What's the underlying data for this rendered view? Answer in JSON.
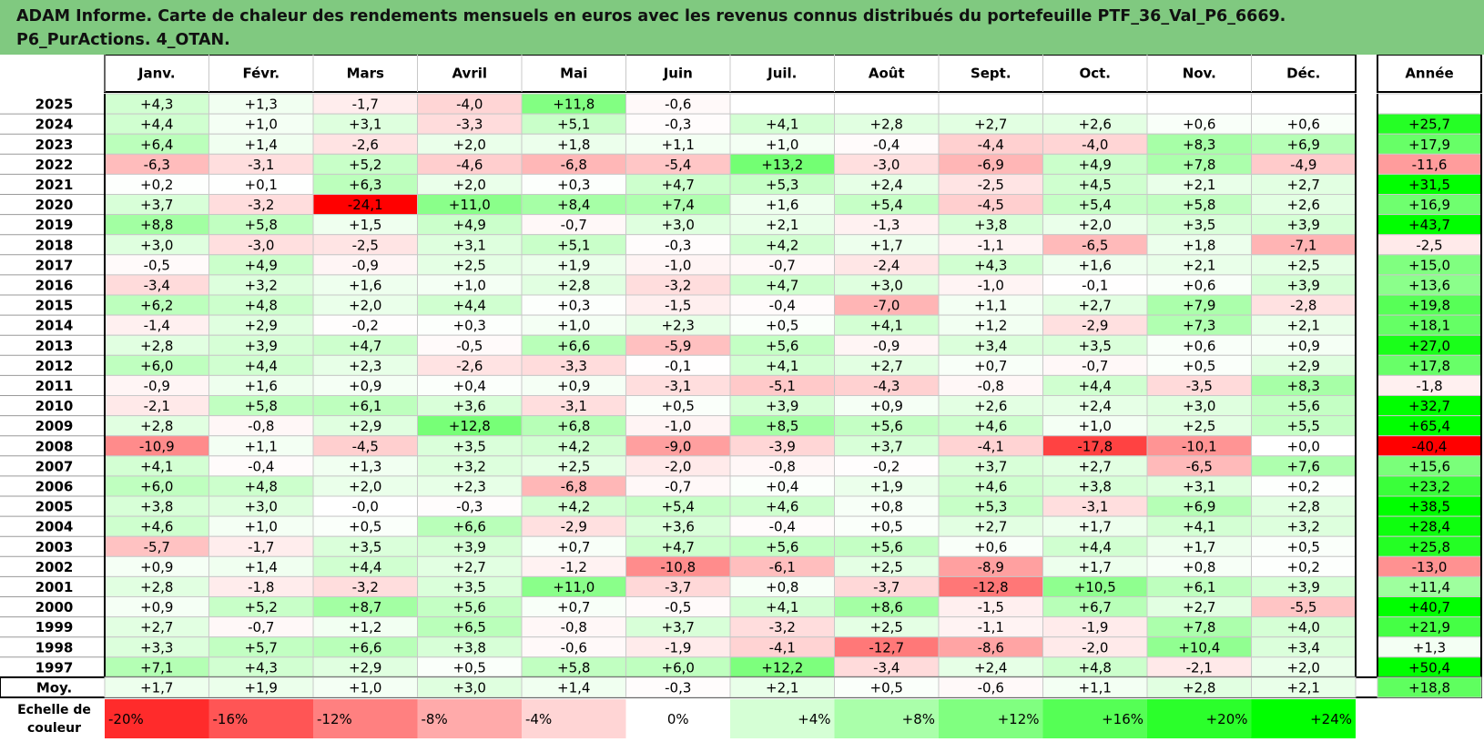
{
  "title": {
    "line1": "ADAM Informe. Carte de chaleur des rendements mensuels en euros avec les revenus connus distribués du portefeuille PTF_36_Val_P6_6669.",
    "line2": "P6_PurActions. 4_OTAN."
  },
  "chart_data": {
    "type": "heatmap",
    "columns": [
      "Janv.",
      "Févr.",
      "Mars",
      "Avril",
      "Mai",
      "Juin",
      "Juil.",
      "Août",
      "Sept.",
      "Oct.",
      "Nov.",
      "Déc."
    ],
    "year_column": "Année",
    "rows": [
      {
        "year": "2025",
        "months": [
          4.3,
          1.3,
          -1.7,
          -4.0,
          11.8,
          -0.6,
          null,
          null,
          null,
          null,
          null,
          null
        ],
        "annual": null
      },
      {
        "year": "2024",
        "months": [
          4.4,
          1.0,
          3.1,
          -3.3,
          5.1,
          -0.3,
          4.1,
          2.8,
          2.7,
          2.6,
          0.6,
          0.6
        ],
        "annual": 25.7
      },
      {
        "year": "2023",
        "months": [
          6.4,
          1.4,
          -2.6,
          2.0,
          1.8,
          1.1,
          1.0,
          -0.4,
          -4.4,
          -4.0,
          8.3,
          6.9
        ],
        "annual": 17.9
      },
      {
        "year": "2022",
        "months": [
          -6.3,
          -3.1,
          5.2,
          -4.6,
          -6.8,
          -5.4,
          13.2,
          -3.0,
          -6.9,
          4.9,
          7.8,
          -4.9
        ],
        "annual": -11.6
      },
      {
        "year": "2021",
        "months": [
          0.2,
          0.1,
          6.3,
          2.0,
          0.3,
          4.7,
          5.3,
          2.4,
          -2.5,
          4.5,
          2.1,
          2.7
        ],
        "annual": 31.5
      },
      {
        "year": "2020",
        "months": [
          3.7,
          -3.2,
          -24.1,
          11.0,
          8.4,
          7.4,
          1.6,
          5.4,
          -4.5,
          5.4,
          5.8,
          2.6
        ],
        "annual": 16.9
      },
      {
        "year": "2019",
        "months": [
          8.8,
          5.8,
          1.5,
          4.9,
          -0.7,
          3.0,
          2.1,
          -1.3,
          3.8,
          2.0,
          3.5,
          3.9
        ],
        "annual": 43.7
      },
      {
        "year": "2018",
        "months": [
          3.0,
          -3.0,
          -2.5,
          3.1,
          5.1,
          -0.3,
          4.2,
          1.7,
          -1.1,
          -6.5,
          1.8,
          -7.1
        ],
        "annual": -2.5
      },
      {
        "year": "2017",
        "months": [
          -0.5,
          4.9,
          -0.9,
          2.5,
          1.9,
          -1.0,
          -0.7,
          -2.4,
          4.3,
          1.6,
          2.1,
          2.5
        ],
        "annual": 15.0
      },
      {
        "year": "2016",
        "months": [
          -3.4,
          3.2,
          1.6,
          1.0,
          2.8,
          -3.2,
          4.7,
          3.0,
          -1.0,
          -0.1,
          0.6,
          3.9
        ],
        "annual": 13.6
      },
      {
        "year": "2015",
        "months": [
          6.2,
          4.8,
          2.0,
          4.4,
          0.3,
          -1.5,
          -0.4,
          -7.0,
          1.1,
          2.7,
          7.9,
          -2.8
        ],
        "annual": 19.8
      },
      {
        "year": "2014",
        "months": [
          -1.4,
          2.9,
          -0.2,
          0.3,
          1.0,
          2.3,
          0.5,
          4.1,
          1.2,
          -2.9,
          7.3,
          2.1
        ],
        "annual": 18.1
      },
      {
        "year": "2013",
        "months": [
          2.8,
          3.9,
          4.7,
          -0.5,
          6.6,
          -5.9,
          5.6,
          -0.9,
          3.4,
          3.5,
          0.6,
          0.9
        ],
        "annual": 27.0
      },
      {
        "year": "2012",
        "months": [
          6.0,
          4.4,
          2.3,
          -2.6,
          -3.3,
          -0.1,
          4.1,
          2.7,
          0.7,
          -0.7,
          0.5,
          2.9
        ],
        "annual": 17.8
      },
      {
        "year": "2011",
        "months": [
          -0.9,
          1.6,
          0.9,
          0.4,
          0.9,
          -3.1,
          -5.1,
          -4.3,
          -0.8,
          4.4,
          -3.5,
          8.3
        ],
        "annual": -1.8
      },
      {
        "year": "2010",
        "months": [
          -2.1,
          5.8,
          6.1,
          3.6,
          -3.1,
          0.5,
          3.9,
          0.9,
          2.6,
          2.4,
          3.0,
          5.6
        ],
        "annual": 32.7
      },
      {
        "year": "2009",
        "months": [
          2.8,
          -0.8,
          2.9,
          12.8,
          6.8,
          -1.0,
          8.5,
          5.6,
          4.6,
          1.0,
          2.5,
          5.5
        ],
        "annual": 65.4
      },
      {
        "year": "2008",
        "months": [
          -10.9,
          1.1,
          -4.5,
          3.5,
          4.2,
          -9.0,
          -3.9,
          3.7,
          -4.1,
          -17.8,
          -10.1,
          0.0
        ],
        "annual": -40.4
      },
      {
        "year": "2007",
        "months": [
          4.1,
          -0.4,
          1.3,
          3.2,
          2.5,
          -2.0,
          -0.8,
          -0.2,
          3.7,
          2.7,
          -6.5,
          7.6
        ],
        "annual": 15.6
      },
      {
        "year": "2006",
        "months": [
          6.0,
          4.8,
          2.0,
          2.3,
          -6.8,
          -0.7,
          0.4,
          1.9,
          4.6,
          3.8,
          3.1,
          0.2
        ],
        "annual": 23.2
      },
      {
        "year": "2005",
        "months": [
          3.8,
          3.0,
          -0.0,
          -0.3,
          4.2,
          5.4,
          4.6,
          0.8,
          5.3,
          -3.1,
          6.9,
          2.8
        ],
        "annual": 38.5
      },
      {
        "year": "2004",
        "months": [
          4.6,
          1.0,
          0.5,
          6.6,
          -2.9,
          3.6,
          -0.4,
          0.5,
          2.7,
          1.7,
          4.1,
          3.2
        ],
        "annual": 28.4
      },
      {
        "year": "2003",
        "months": [
          -5.7,
          -1.7,
          3.5,
          3.9,
          0.7,
          4.7,
          5.6,
          5.6,
          0.6,
          4.4,
          1.7,
          0.5
        ],
        "annual": 25.8
      },
      {
        "year": "2002",
        "months": [
          0.9,
          1.4,
          4.4,
          2.7,
          -1.2,
          -10.8,
          -6.1,
          2.5,
          -8.9,
          1.7,
          0.8,
          0.2
        ],
        "annual": -13.0
      },
      {
        "year": "2001",
        "months": [
          2.8,
          -1.8,
          -3.2,
          3.5,
          11.0,
          -3.7,
          0.8,
          -3.7,
          -12.8,
          10.5,
          6.1,
          3.9
        ],
        "annual": 11.4
      },
      {
        "year": "2000",
        "months": [
          0.9,
          5.2,
          8.7,
          5.6,
          0.7,
          -0.5,
          4.1,
          8.6,
          -1.5,
          6.7,
          2.7,
          -5.5
        ],
        "annual": 40.7
      },
      {
        "year": "1999",
        "months": [
          2.7,
          -0.7,
          1.2,
          6.5,
          -0.8,
          3.7,
          -3.2,
          2.5,
          -1.1,
          -1.9,
          7.8,
          4.0
        ],
        "annual": 21.9
      },
      {
        "year": "1998",
        "months": [
          3.3,
          5.7,
          6.6,
          3.8,
          -0.6,
          -1.9,
          -4.1,
          -12.7,
          -8.6,
          -2.0,
          10.4,
          3.4
        ],
        "annual": 1.3
      },
      {
        "year": "1997",
        "months": [
          7.1,
          4.3,
          2.9,
          0.5,
          5.8,
          6.0,
          12.2,
          -3.4,
          2.4,
          4.8,
          -2.1,
          2.0
        ],
        "annual": 50.4
      }
    ],
    "average_row": {
      "label": "Moy.",
      "months": [
        1.7,
        1.9,
        1.0,
        3.0,
        1.4,
        -0.3,
        2.1,
        0.5,
        -0.6,
        1.1,
        2.8,
        2.1
      ],
      "annual": 18.8
    },
    "scale": {
      "label_line1": "Echelle de",
      "label_line2": "couleur",
      "stops": [
        {
          "value": -20,
          "label": "-20%"
        },
        {
          "value": -16,
          "label": "-16%"
        },
        {
          "value": -12,
          "label": "-12%"
        },
        {
          "value": -8,
          "label": "-8%"
        },
        {
          "value": -4,
          "label": "-4%"
        },
        {
          "value": 0,
          "label": "0%"
        },
        {
          "value": 4,
          "label": "+4%"
        },
        {
          "value": 8,
          "label": "+8%"
        },
        {
          "value": 12,
          "label": "+12%"
        },
        {
          "value": 16,
          "label": "+16%"
        },
        {
          "value": 20,
          "label": "+20%"
        },
        {
          "value": 24,
          "label": "+24%"
        }
      ]
    },
    "colors": {
      "negative": "#ff0000",
      "neutral": "#ffffff",
      "positive": "#00ff00",
      "title_background": "#80c980"
    }
  }
}
